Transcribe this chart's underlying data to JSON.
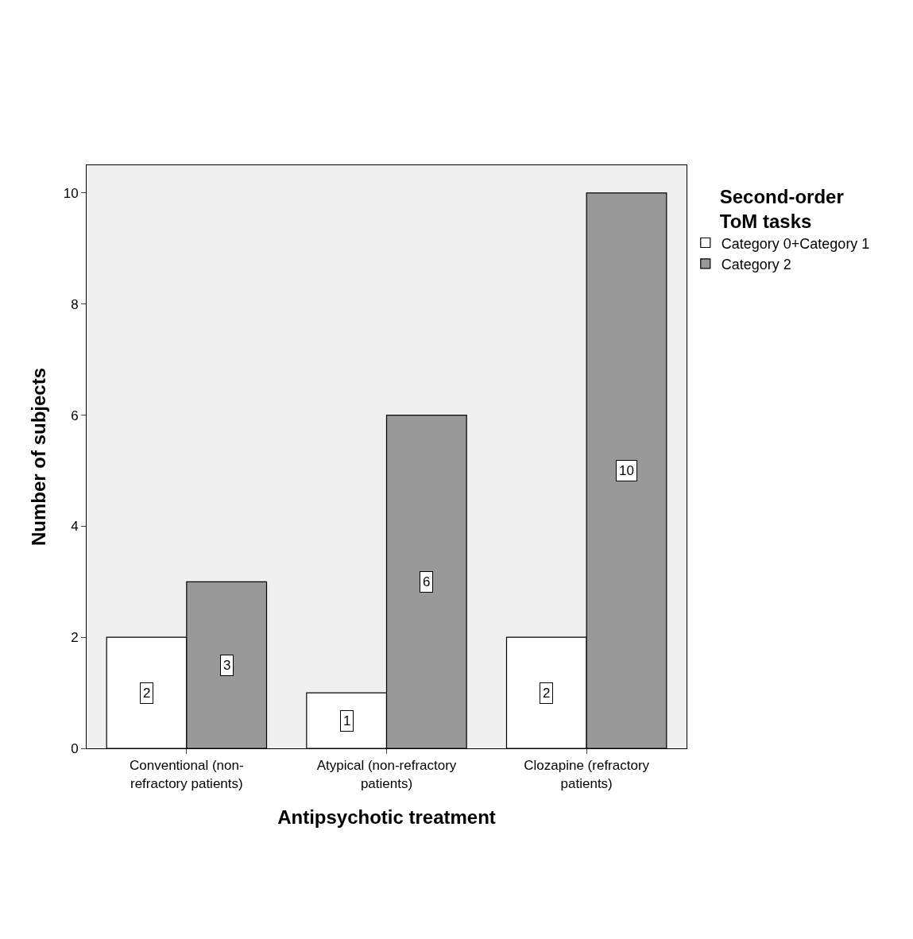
{
  "chart_data": {
    "type": "bar",
    "xlabel": "Antipsychotic treatment",
    "ylabel": "Number of subjects",
    "legend_title": "Second-order ToM tasks",
    "categories": [
      "Conventional (non-refractory patients)",
      "Atypical (non-refractory patients)",
      "Clozapine (refractory patients)"
    ],
    "series": [
      {
        "name": "Category 0+Category 1",
        "color": "#ffffff",
        "values": [
          2,
          1,
          2
        ]
      },
      {
        "name": "Category 2",
        "color": "#999999",
        "values": [
          3,
          6,
          10
        ]
      }
    ],
    "ylim": [
      0,
      10.5
    ],
    "yticks": [
      0,
      2,
      4,
      6,
      8,
      10
    ],
    "data_labels": true,
    "legend": "top right",
    "grid": false
  }
}
